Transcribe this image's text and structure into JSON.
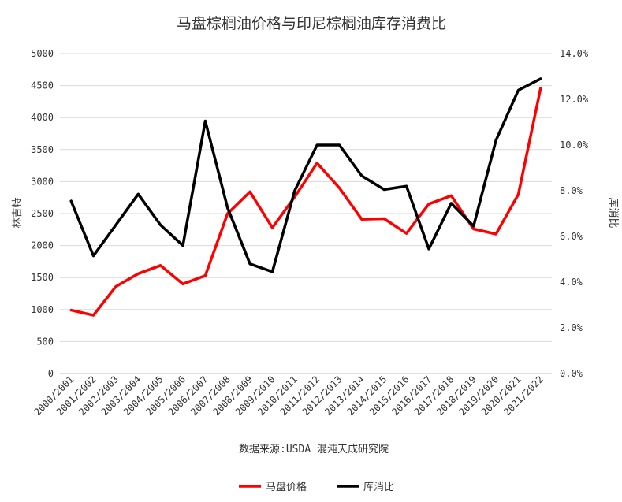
{
  "chart_data": {
    "type": "line",
    "title": "马盘棕榈油价格与印尼棕榈油库存消费比",
    "categories": [
      "2000/2001",
      "2001/2002",
      "2002/2003",
      "2003/2004",
      "2004/2005",
      "2005/2006",
      "2006/2007",
      "2007/2008",
      "2008/2009",
      "2009/2010",
      "2010/2011",
      "2011/2012",
      "2012/2013",
      "2013/2014",
      "2014/2015",
      "2015/2016",
      "2016/2017",
      "2017/2018",
      "2018/2019",
      "2019/2020",
      "2020/2021",
      "2021/2022"
    ],
    "ylabel_left": "林吉特",
    "ylabel_right": "库消比",
    "ylim_left": [
      0,
      5000
    ],
    "yticks_left": [
      "0",
      "500",
      "1000",
      "1500",
      "2000",
      "2500",
      "3000",
      "3500",
      "4000",
      "4500",
      "5000"
    ],
    "ylim_right": [
      0,
      14
    ],
    "yticks_right": [
      "0.0%",
      "2.0%",
      "4.0%",
      "6.0%",
      "8.0%",
      "10.0%",
      "12.0%",
      "14.0%"
    ],
    "grid": true,
    "legend_position": "bottom",
    "series": [
      {
        "name": "马盘价格",
        "axis": "left",
        "color": "#ff0000",
        "values": [
          990,
          910,
          1360,
          1560,
          1690,
          1400,
          1530,
          2500,
          2840,
          2280,
          2760,
          3290,
          2900,
          2410,
          2420,
          2190,
          2650,
          2780,
          2260,
          2180,
          2800,
          4460
        ]
      },
      {
        "name": "库消比",
        "axis": "right",
        "color": "#000000",
        "values": [
          7.55,
          5.15,
          6.5,
          7.85,
          6.5,
          5.6,
          11.05,
          7.25,
          4.8,
          4.45,
          8.0,
          10.0,
          10.0,
          8.65,
          8.05,
          8.2,
          5.45,
          7.45,
          6.45,
          10.2,
          12.4,
          12.9
        ]
      }
    ]
  },
  "source_note": "数据来源:USDA 混沌天成研究院"
}
